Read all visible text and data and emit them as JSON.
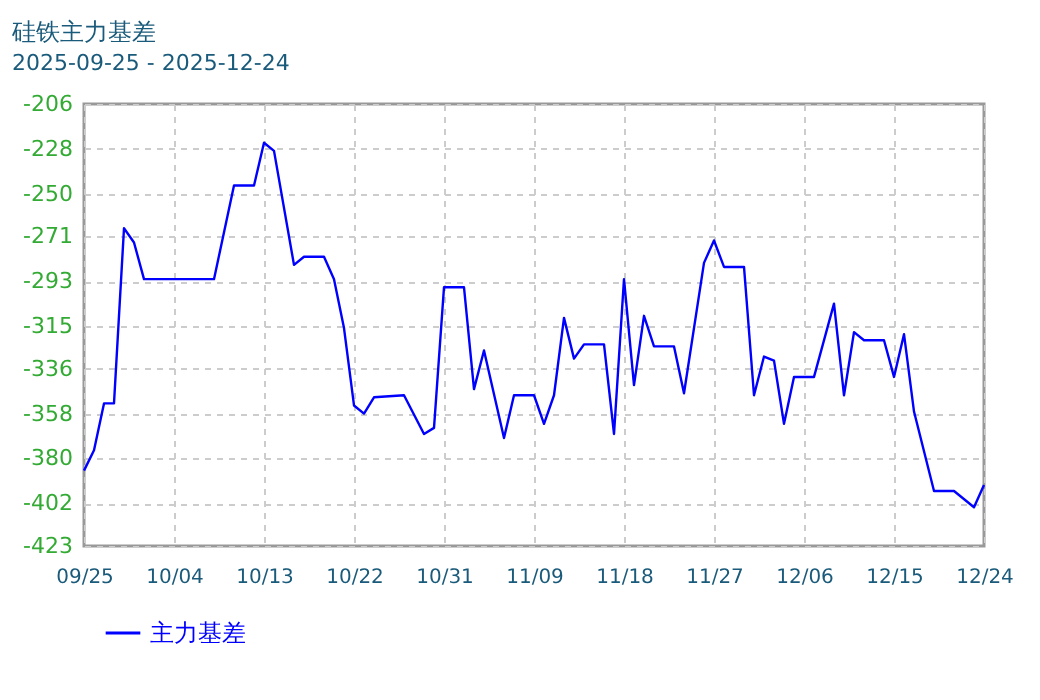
{
  "chart_data": {
    "type": "line",
    "title": "硅铁主力基差",
    "subtitle": "2025-09-25 - 2025-12-24",
    "x": [
      "2025-09-25",
      "2025-09-26",
      "2025-09-27",
      "2025-09-28",
      "2025-09-29",
      "2025-09-30",
      "2025-10-01",
      "2025-10-08",
      "2025-10-10",
      "2025-10-12",
      "2025-10-13",
      "2025-10-14",
      "2025-10-16",
      "2025-10-17",
      "2025-10-19",
      "2025-10-20",
      "2025-10-21",
      "2025-10-22",
      "2025-10-23",
      "2025-10-24",
      "2025-10-27",
      "2025-10-29",
      "2025-10-30",
      "2025-10-31",
      "2025-11-02",
      "2025-11-03",
      "2025-11-04",
      "2025-11-06",
      "2025-11-07",
      "2025-11-09",
      "2025-11-10",
      "2025-11-11",
      "2025-11-12",
      "2025-11-13",
      "2025-11-14",
      "2025-11-16",
      "2025-11-17",
      "2025-11-18",
      "2025-11-19",
      "2025-11-20",
      "2025-11-21",
      "2025-11-23",
      "2025-11-24",
      "2025-11-26",
      "2025-11-27",
      "2025-11-28",
      "2025-11-30",
      "2025-12-01",
      "2025-12-02",
      "2025-12-03",
      "2025-12-04",
      "2025-12-05",
      "2025-12-07",
      "2025-12-09",
      "2025-12-10",
      "2025-12-11",
      "2025-12-12",
      "2025-12-14",
      "2025-12-15",
      "2025-12-16",
      "2025-12-17",
      "2025-12-19",
      "2025-12-21",
      "2025-12-23",
      "2025-12-24"
    ],
    "series": [
      {
        "name": "主力基差",
        "color": "#0000ff",
        "values": [
          -386,
          -376,
          -353,
          -353,
          -267,
          -274,
          -292,
          -292,
          -246,
          -246,
          -225,
          -229,
          -285,
          -281,
          -281,
          -292,
          -316,
          -354,
          -358,
          -350,
          -349,
          -368,
          -365,
          -296,
          -296,
          -346,
          -327,
          -370,
          -349,
          -349,
          -363,
          -349,
          -311,
          -331,
          -324,
          -324,
          -368,
          -292,
          -344,
          -310,
          -325,
          -325,
          -348,
          -284,
          -273,
          -286,
          -286,
          -349,
          -330,
          -332,
          -363,
          -340,
          -340,
          -304,
          -349,
          -318,
          -322,
          -322,
          -340,
          -319,
          -357,
          -396,
          -396,
          -404,
          -393
        ]
      }
    ],
    "ylim": [
      -423,
      -206
    ],
    "yticks": [
      -206,
      -228,
      -250,
      -271,
      -293,
      -315,
      -336,
      -358,
      -380,
      -402,
      -423
    ],
    "xlim": [
      "2025-09-25",
      "2025-12-24"
    ],
    "xticks": [
      {
        "value": "2025-09-25",
        "label": "09/25"
      },
      {
        "value": "2025-10-04",
        "label": "10/04"
      },
      {
        "value": "2025-10-13",
        "label": "10/13"
      },
      {
        "value": "2025-10-22",
        "label": "10/22"
      },
      {
        "value": "2025-10-31",
        "label": "10/31"
      },
      {
        "value": "2025-11-09",
        "label": "11/09"
      },
      {
        "value": "2025-11-18",
        "label": "11/18"
      },
      {
        "value": "2025-11-27",
        "label": "11/27"
      },
      {
        "value": "2025-12-06",
        "label": "12/06"
      },
      {
        "value": "2025-12-15",
        "label": "12/15"
      },
      {
        "value": "2025-12-24",
        "label": "12/24"
      }
    ],
    "grid": true,
    "legend": "bottom left",
    "marker": "none",
    "line_style": "solid"
  }
}
